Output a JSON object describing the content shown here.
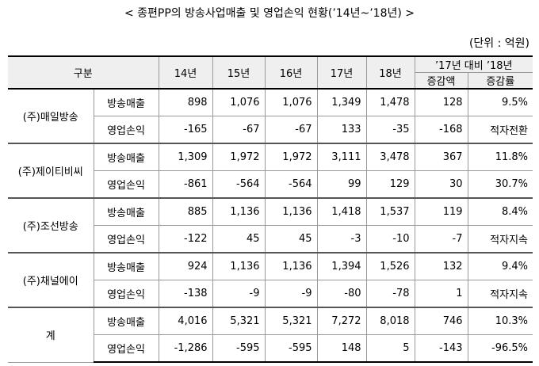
{
  "title": "< 종편PP의 방송사업매출 및 영업손익 현황(’14년~’18년) >",
  "unit": "(단위 : 억원)",
  "table": {
    "header": {
      "group": "구분",
      "years": [
        "14년",
        "15년",
        "16년",
        "17년",
        "18년"
      ],
      "change": "’17년 대비 ’18년",
      "change_cols": [
        "증감액",
        "증감률"
      ]
    },
    "groups": [
      {
        "name": "(주)매일방송",
        "rows": [
          {
            "label": "방송매출",
            "cells": [
              "898",
              "1,076",
              "1,076",
              "1,349",
              "1,478",
              "128",
              "9.5%"
            ]
          },
          {
            "label": "영업손익",
            "cells": [
              "-165",
              "-67",
              "-67",
              "133",
              "-35",
              "-168",
              "적자전환"
            ]
          }
        ]
      },
      {
        "name": "(주)제이티비씨",
        "rows": [
          {
            "label": "방송매출",
            "cells": [
              "1,309",
              "1,972",
              "1,972",
              "3,111",
              "3,478",
              "367",
              "11.8%"
            ]
          },
          {
            "label": "영업손익",
            "cells": [
              "-861",
              "-564",
              "-564",
              "99",
              "129",
              "30",
              "30.7%"
            ]
          }
        ]
      },
      {
        "name": "(주)조선방송",
        "rows": [
          {
            "label": "방송매출",
            "cells": [
              "885",
              "1,136",
              "1,136",
              "1,418",
              "1,537",
              "119",
              "8.4%"
            ]
          },
          {
            "label": "영업손익",
            "cells": [
              "-122",
              "45",
              "45",
              "-3",
              "-10",
              "-7",
              "적자지속"
            ]
          }
        ]
      },
      {
        "name": "(주)채널에이",
        "rows": [
          {
            "label": "방송매출",
            "cells": [
              "924",
              "1,136",
              "1,136",
              "1,394",
              "1,526",
              "132",
              "9.4%"
            ]
          },
          {
            "label": "영업손익",
            "cells": [
              "-138",
              "-9",
              "-9",
              "-80",
              "-78",
              "1",
              "적자지속"
            ]
          }
        ]
      },
      {
        "name": "계",
        "rows": [
          {
            "label": "방송매출",
            "cells": [
              "4,016",
              "5,321",
              "5,321",
              "7,272",
              "8,018",
              "746",
              "10.3%"
            ]
          },
          {
            "label": "영업손익",
            "cells": [
              "-1,286",
              "-595",
              "-595",
              "148",
              "5",
              "-143",
              "-96.5%"
            ]
          }
        ]
      }
    ]
  }
}
